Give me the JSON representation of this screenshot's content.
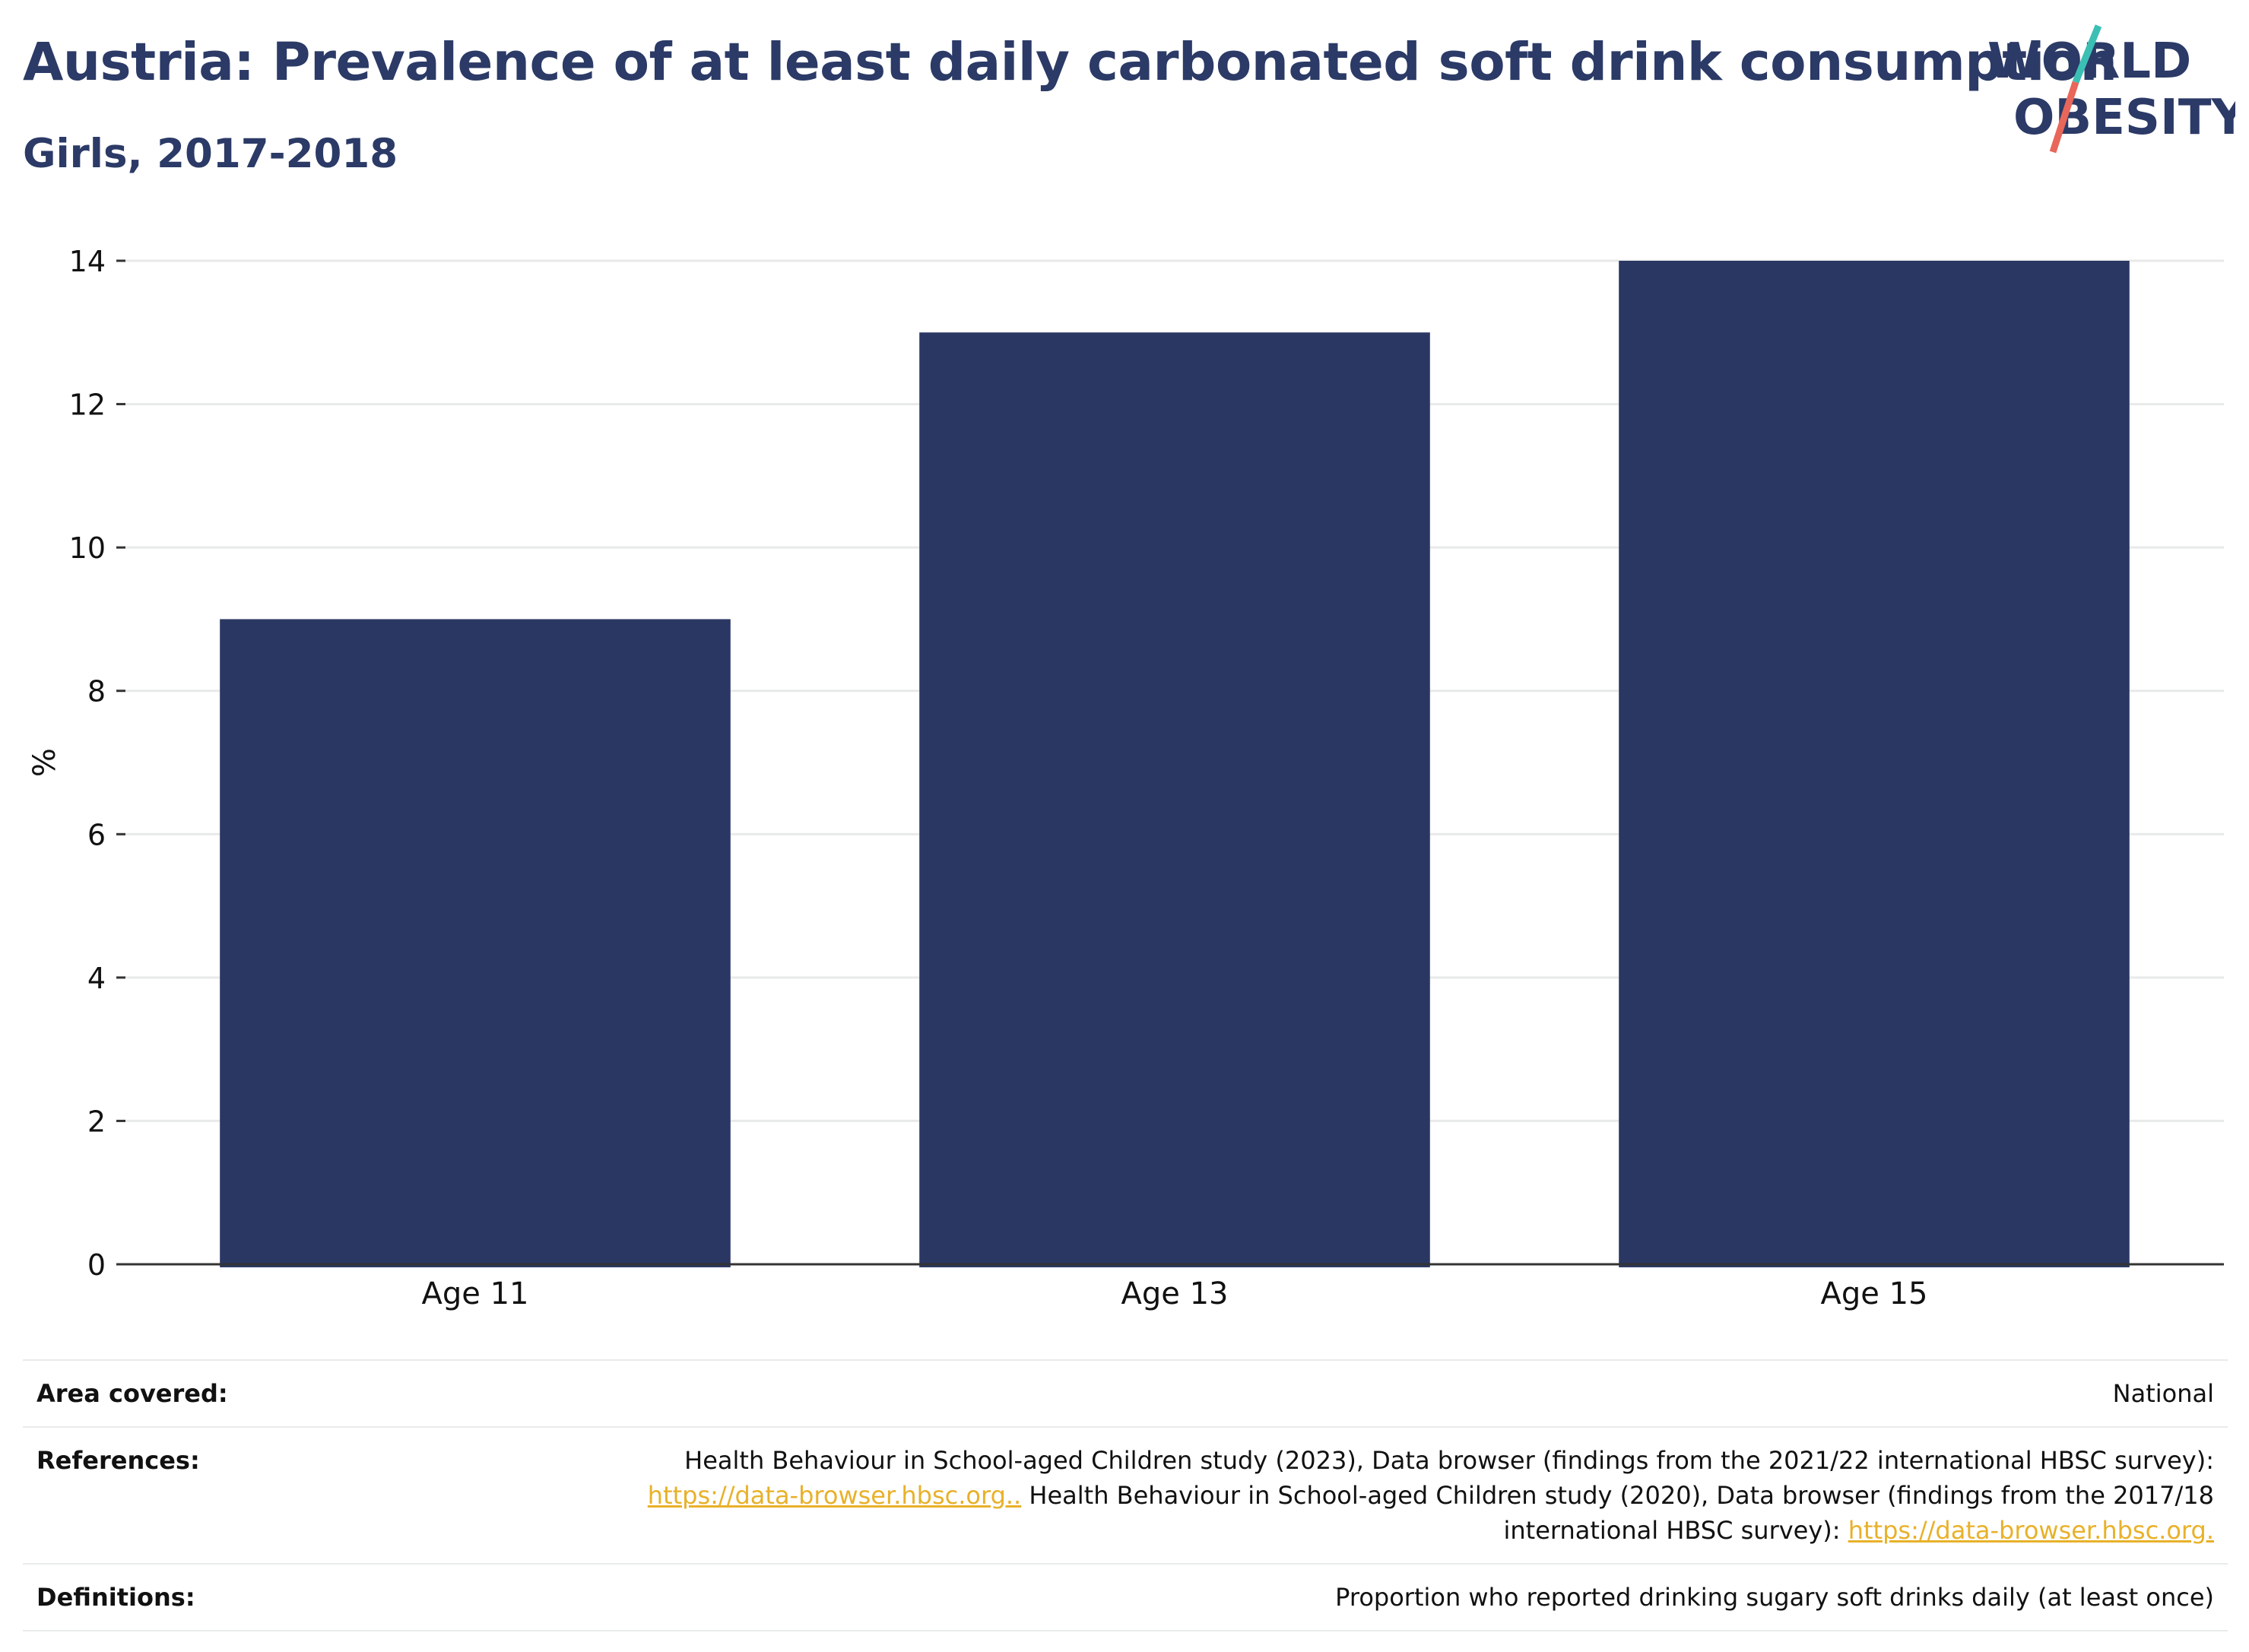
{
  "title": "Austria: Prevalence of at least daily carbonated soft drink consumption",
  "subtitle": "Girls, 2017-2018",
  "logo": {
    "line1": "WORLD",
    "line2": "OBESITY",
    "colors": [
      "#2b3a66",
      "#3bbfb5",
      "#e8675a"
    ]
  },
  "chart_data": {
    "type": "bar",
    "categories": [
      "Age 11",
      "Age 13",
      "Age 15"
    ],
    "values": [
      9,
      13,
      14
    ],
    "ylabel": "%",
    "ylim": [
      0,
      14
    ],
    "yticks": [
      0,
      2,
      4,
      6,
      8,
      10,
      12,
      14
    ],
    "grid": true,
    "bar_color": "#2b3763"
  },
  "footer": {
    "area_label": "Area covered:",
    "area_value": "National",
    "ref_label": "References:",
    "ref_text1": "Health Behaviour in School-aged Children study (2023), Data browser (findings from the 2021/22 international HBSC survey):",
    "ref_link1": "https://data-browser.hbsc.org..",
    "ref_text2": " Health Behaviour in School-aged Children study (2020), Data browser (findings from the 2017/18",
    "ref_text3": "international HBSC survey): ",
    "ref_link2": "https://data-browser.hbsc.org.",
    "def_label": "Definitions:",
    "def_value": "Proportion who reported drinking sugary soft drinks daily (at least once)"
  }
}
